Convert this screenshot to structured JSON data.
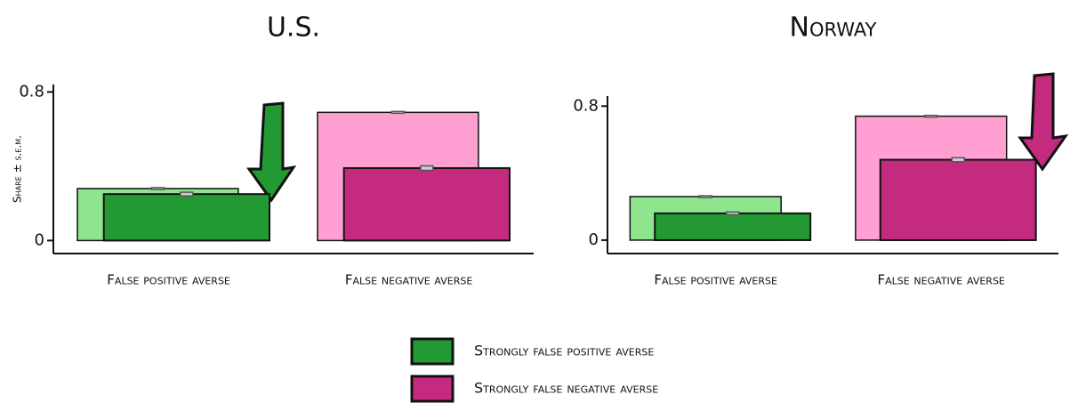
{
  "chart_data": [
    {
      "type": "bar",
      "title": "U.S.",
      "ylabel": "Share ± s.e.m.",
      "categories": [
        "False positive averse",
        "False negative averse"
      ],
      "values": [
        0.28,
        0.69
      ],
      "errors": [
        0.005,
        0.005
      ],
      "colors": [
        "#8ee58e",
        "#ff9fd2"
      ],
      "strong_values": [
        0.25,
        0.39
      ],
      "strong_errors": [
        0.01,
        0.012
      ],
      "strong_colors": [
        "#229933",
        "#c42b7f"
      ],
      "ylim": [
        -0.07,
        0.84
      ],
      "yticks": [
        0,
        0.8
      ]
    },
    {
      "type": "bar",
      "title": "Norway",
      "categories": [
        "False positive averse",
        "False negative averse"
      ],
      "values": [
        0.26,
        0.74
      ],
      "errors": [
        0.005,
        0.005
      ],
      "colors": [
        "#8ee58e",
        "#ff9fd2"
      ],
      "strong_values": [
        0.16,
        0.48
      ],
      "strong_errors": [
        0.008,
        0.012
      ],
      "strong_colors": [
        "#229933",
        "#c42b7f"
      ],
      "ylim": [
        -0.08,
        0.86
      ],
      "yticks": [
        0,
        0.8
      ]
    }
  ],
  "legend": {
    "items": [
      {
        "label": "Strongly false positive averse",
        "color": "#229933"
      },
      {
        "label": "Strongly false negative averse",
        "color": "#c42b7f"
      }
    ]
  }
}
